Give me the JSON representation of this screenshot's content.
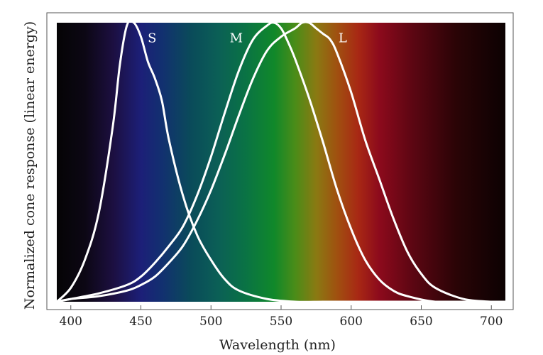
{
  "chart_data": {
    "type": "line",
    "title": "",
    "xlabel": "Wavelength (nm)",
    "ylabel": "Normalized cone response (linear energy)",
    "xlim": [
      390,
      710
    ],
    "ylim": [
      0,
      1
    ],
    "xticks": [
      400,
      450,
      500,
      550,
      600,
      650,
      700
    ],
    "grid": false,
    "legend": "inline labels",
    "background": "visible spectrum gradient",
    "spectrum_colors": [
      {
        "wl": 390,
        "color": "#050405"
      },
      {
        "wl": 410,
        "color": "#0c0714"
      },
      {
        "wl": 430,
        "color": "#1c0f40"
      },
      {
        "wl": 450,
        "color": "#1c1f78"
      },
      {
        "wl": 465,
        "color": "#123070"
      },
      {
        "wl": 485,
        "color": "#0a4a5a"
      },
      {
        "wl": 505,
        "color": "#0b5f56"
      },
      {
        "wl": 525,
        "color": "#0a7344"
      },
      {
        "wl": 545,
        "color": "#10882a"
      },
      {
        "wl": 560,
        "color": "#4a8c18"
      },
      {
        "wl": 575,
        "color": "#8a7a12"
      },
      {
        "wl": 590,
        "color": "#a05010"
      },
      {
        "wl": 605,
        "color": "#a82814"
      },
      {
        "wl": 620,
        "color": "#8c0a1c"
      },
      {
        "wl": 645,
        "color": "#5a0612"
      },
      {
        "wl": 675,
        "color": "#2a0406"
      },
      {
        "wl": 710,
        "color": "#0c0202"
      }
    ],
    "series": [
      {
        "name": "S",
        "color": "#ffffff",
        "x": [
          390,
          400,
          410,
          420,
          430,
          435,
          440,
          445,
          450,
          455,
          460,
          465,
          470,
          480,
          490,
          500,
          510,
          520,
          540,
          560,
          580,
          600,
          620,
          650,
          680,
          710
        ],
        "y": [
          0.0,
          0.05,
          0.15,
          0.32,
          0.63,
          0.85,
          0.99,
          1.0,
          0.95,
          0.86,
          0.8,
          0.72,
          0.58,
          0.38,
          0.24,
          0.15,
          0.08,
          0.04,
          0.01,
          0.0,
          0.0,
          0.0,
          0.0,
          0.0,
          0.0,
          0.0
        ]
      },
      {
        "name": "M",
        "color": "#ffffff",
        "x": [
          390,
          400,
          420,
          440,
          450,
          460,
          470,
          480,
          490,
          500,
          510,
          520,
          530,
          540,
          545,
          550,
          555,
          560,
          570,
          580,
          590,
          600,
          610,
          620,
          630,
          640,
          660,
          680,
          710
        ],
        "y": [
          0.0,
          0.01,
          0.03,
          0.06,
          0.09,
          0.14,
          0.2,
          0.27,
          0.38,
          0.52,
          0.68,
          0.83,
          0.94,
          0.99,
          1.0,
          0.98,
          0.93,
          0.87,
          0.73,
          0.57,
          0.4,
          0.26,
          0.15,
          0.08,
          0.04,
          0.02,
          0.0,
          0.0,
          0.0
        ]
      },
      {
        "name": "L",
        "color": "#ffffff",
        "x": [
          390,
          400,
          420,
          440,
          450,
          460,
          470,
          480,
          490,
          500,
          510,
          520,
          530,
          540,
          550,
          560,
          565,
          570,
          575,
          580,
          585,
          590,
          600,
          610,
          620,
          630,
          640,
          650,
          660,
          680,
          700,
          710
        ],
        "y": [
          0.0,
          0.01,
          0.02,
          0.04,
          0.06,
          0.09,
          0.14,
          0.2,
          0.29,
          0.4,
          0.53,
          0.67,
          0.8,
          0.9,
          0.95,
          0.98,
          1.0,
          1.0,
          0.98,
          0.96,
          0.94,
          0.89,
          0.75,
          0.58,
          0.44,
          0.3,
          0.18,
          0.1,
          0.05,
          0.01,
          0.0,
          0.0
        ]
      }
    ],
    "annotations": [
      {
        "text": "S",
        "x": 458,
        "y": 0.95
      },
      {
        "text": "M",
        "x": 518,
        "y": 0.95
      },
      {
        "text": "L",
        "x": 594,
        "y": 0.95
      }
    ]
  }
}
